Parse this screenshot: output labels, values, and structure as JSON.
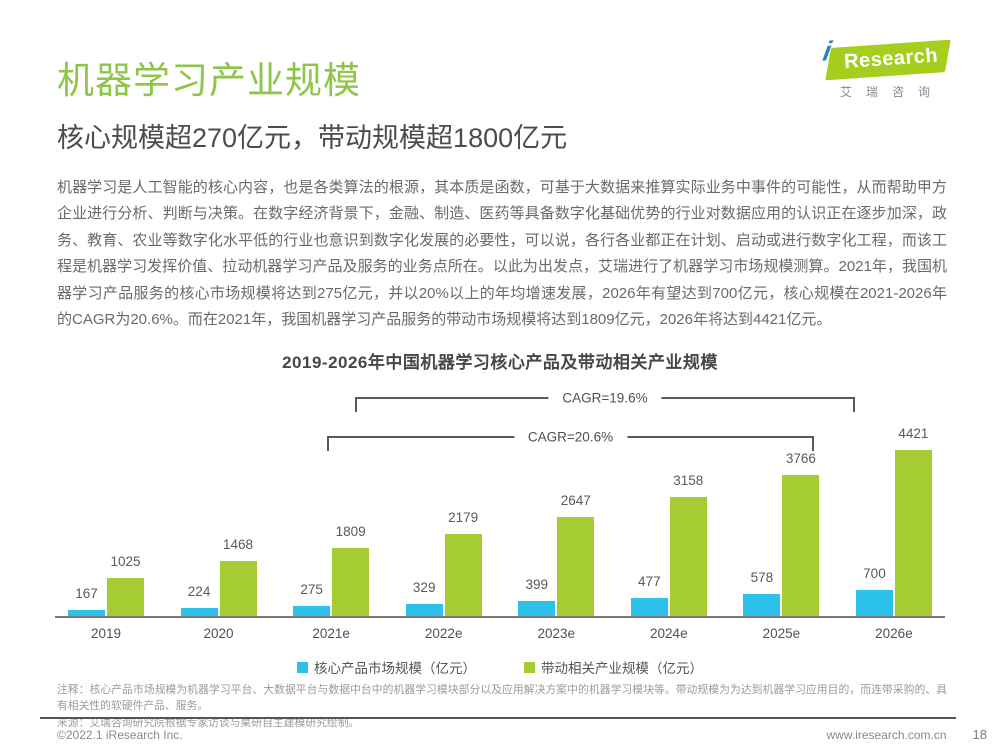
{
  "header": {
    "title": "机器学习产业规模",
    "subtitle": "核心规模超270亿元，带动规模超1800亿元",
    "logo": {
      "brand_i": "i",
      "brand_text": "Research",
      "brand_cn": "艾瑞咨询",
      "brand_green": "#a6ce1f",
      "brand_teal": "#2589ab"
    }
  },
  "body": {
    "paragraph": "机器学习是人工智能的核心内容，也是各类算法的根源，其本质是函数，可基于大数据来推算实际业务中事件的可能性，从而帮助甲方企业进行分析、判断与决策。在数字经济背景下，金融、制造、医药等具备数字化基础优势的行业对数据应用的认识正在逐步加深，政务、教育、农业等数字化水平低的行业也意识到数字化发展的必要性，可以说，各行各业都正在计划、启动或进行数字化工程，而该工程是机器学习发挥价值、拉动机器学习产品及服务的业务点所在。以此为出发点，艾瑞进行了机器学习市场规模测算。2021年，我国机器学习产品服务的核心市场规模将达到275亿元，并以20%以上的年均增速发展，2026年有望达到700亿元，核心规模在2021-2026年的CAGR为20.6%。而在2021年，我国机器学习产品服务的带动市场规模将达到1809亿元，2026年将达到4421亿元。"
  },
  "chart_data": {
    "type": "bar",
    "title": "2019-2026年中国机器学习核心产品及带动相关产业规模",
    "categories": [
      "2019",
      "2020",
      "2021e",
      "2022e",
      "2023e",
      "2024e",
      "2025e",
      "2026e"
    ],
    "series": [
      {
        "name": "核心产品市场规模（亿元）",
        "color": "#2bc1e9",
        "values": [
          167,
          224,
          275,
          329,
          399,
          477,
          578,
          700
        ]
      },
      {
        "name": "带动相关产业规模（亿元）",
        "color": "#a5cd33",
        "values": [
          1025,
          1468,
          1809,
          2179,
          2647,
          3158,
          3766,
          4421
        ]
      }
    ],
    "annotations": [
      {
        "label": "CAGR=19.6%",
        "from": "2021e",
        "to": "2026e",
        "applies_to": "带动相关产业规模（亿元）"
      },
      {
        "label": "CAGR=20.6%",
        "from": "2021e",
        "to": "2026e",
        "applies_to": "核心产品市场规模（亿元）"
      }
    ],
    "ylim": [
      0,
      4421
    ],
    "grid": false,
    "legend_position": "bottom",
    "value_labels": true
  },
  "notes": {
    "annotation": "注释：核心产品市场规模为机器学习平台、大数据平台与数据中台中的机器学习模块部分以及应用解决方案中的机器学习模块等。带动规模为为达到机器学习应用目的，而连带采购的、具有相关性的软硬件产品、服务。",
    "source": "来源：艾瑞咨询研究院根据专家访谈与桌研自主建模研究绘制。"
  },
  "footer": {
    "copyright": "©2022.1 iResearch Inc.",
    "website": "www.iresearch.com.cn",
    "page_number": "18"
  }
}
